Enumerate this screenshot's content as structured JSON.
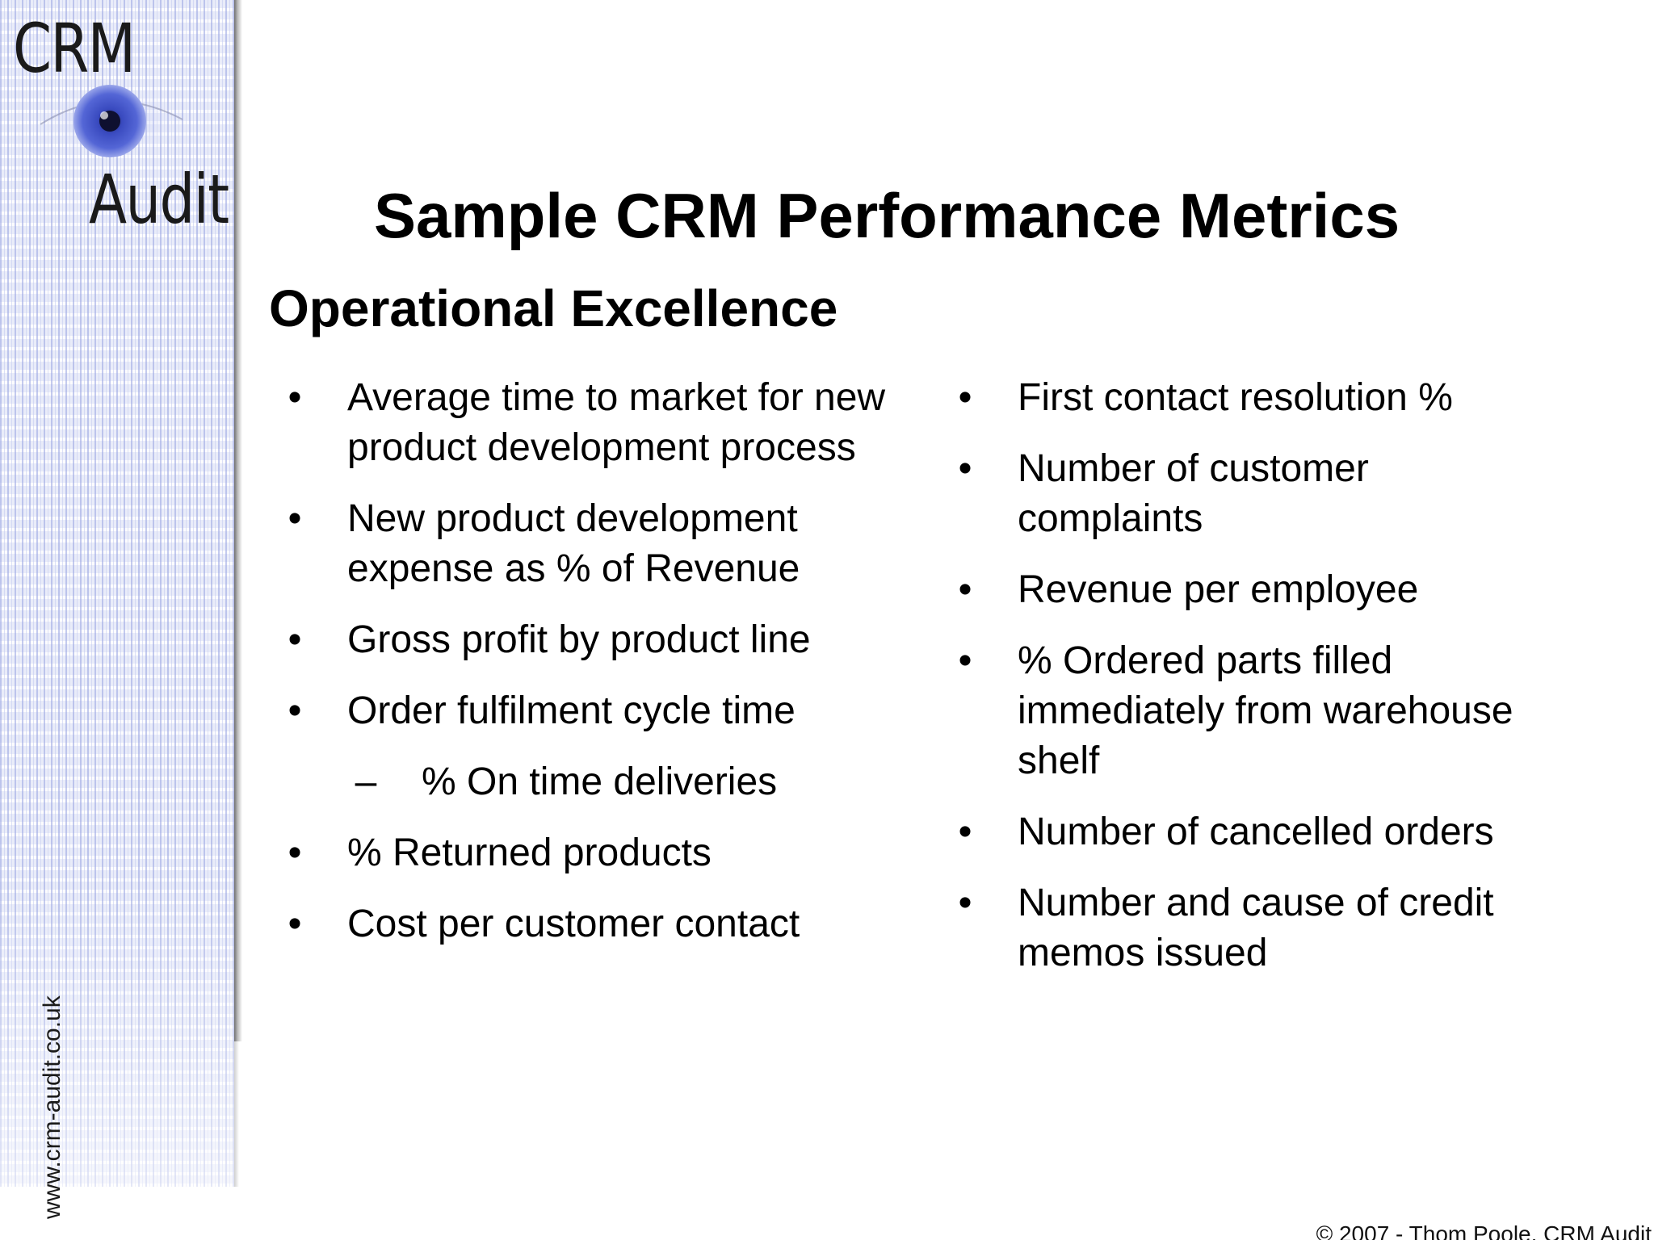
{
  "logo": {
    "line1": "CRM",
    "line2": "Audit"
  },
  "sidebar": {
    "url": "www.crm-audit.co.uk"
  },
  "slide": {
    "title": "Sample CRM Performance Metrics",
    "subtitle": "Operational Excellence",
    "left_items": [
      {
        "marker": "•",
        "text": "Average time to market for new product development process"
      },
      {
        "marker": "•",
        "text": "New product development expense as % of Revenue"
      },
      {
        "marker": "•",
        "text": "Gross profit by product line"
      },
      {
        "marker": "•",
        "text": "Order fulfilment cycle time"
      },
      {
        "marker": "–",
        "text": "% On time deliveries"
      },
      {
        "marker": "•",
        "text": "% Returned products"
      },
      {
        "marker": "•",
        "text": "Cost per customer contact"
      }
    ],
    "right_items": [
      {
        "marker": "•",
        "text": "First contact resolution %"
      },
      {
        "marker": "•",
        "text": "Number of customer complaints"
      },
      {
        "marker": "•",
        "text": "Revenue per employee"
      },
      {
        "marker": "•",
        "text": "% Ordered parts filled immediately from warehouse shelf"
      },
      {
        "marker": "•",
        "text": "Number of cancelled orders"
      },
      {
        "marker": "•",
        "text": "Number and cause of credit memos issued"
      }
    ]
  },
  "footer": {
    "copyright": "© 2007 - Thom Poole, CRM Audit"
  }
}
